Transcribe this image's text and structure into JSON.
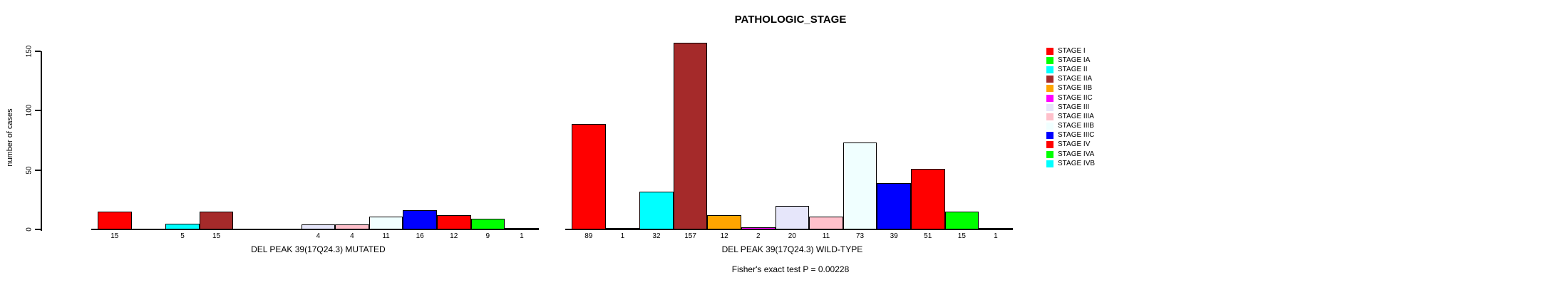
{
  "chart_data": {
    "type": "bar",
    "title": "PATHOLOGIC_STAGE",
    "ylabel": "number of cases",
    "xlabel": "",
    "yticks": [
      0,
      50,
      100,
      150
    ],
    "ylim": [
      0,
      157
    ],
    "grid": false,
    "legend_position": "right-top",
    "bar_value_labels": "shown under each nonzero bar",
    "categories": [
      "STAGE I",
      "STAGE IA",
      "STAGE II",
      "STAGE IIA",
      "STAGE IIB",
      "STAGE IIC",
      "STAGE III",
      "STAGE IIIA",
      "STAGE IIIB",
      "STAGE IIIC",
      "STAGE IV",
      "STAGE IVA",
      "STAGE IVB"
    ],
    "category_colors": [
      "#ff0000",
      "#00ff00",
      "#00ffff",
      "#a52a2a",
      "#ffa500",
      "#ff00ff",
      "#e6e6fa",
      "#ffc0cb",
      "#f0ffff",
      "#0000ff",
      "#ff0000",
      "#00ff00",
      "#00ffff"
    ],
    "series": [
      {
        "name": "DEL PEAK 39(17Q24.3) MUTATED",
        "values": [
          15,
          0,
          5,
          15,
          0,
          0,
          4,
          4,
          11,
          16,
          12,
          9,
          1
        ]
      },
      {
        "name": "DEL PEAK 39(17Q24.3) WILD-TYPE",
        "values": [
          89,
          1,
          32,
          157,
          12,
          2,
          20,
          11,
          73,
          39,
          51,
          15,
          1
        ]
      }
    ],
    "annotation": "Fisher's exact test P = 0.00228",
    "axis_color": "#000000",
    "bar_border_color": "#000000"
  }
}
